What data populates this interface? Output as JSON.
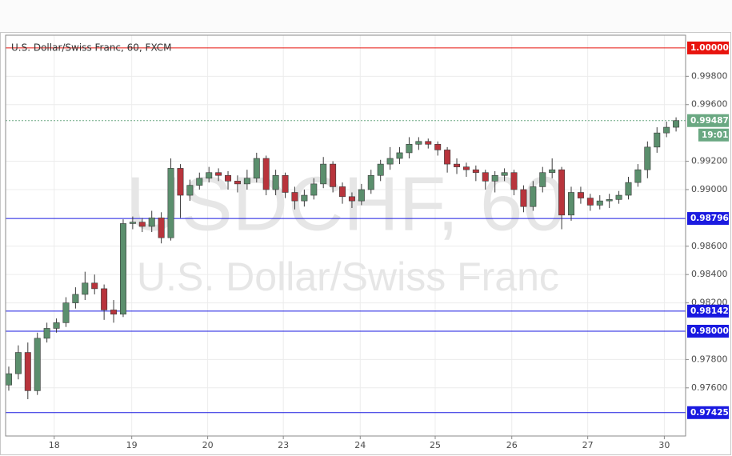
{
  "chart_data": {
    "type": "candlestick",
    "title": "U.S. Dollar/Swiss Franc, 60, FXCM",
    "watermark": "USDCHF, 60",
    "watermark_subtitle": "U.S. Dollar/Swiss Franc",
    "x": [
      1,
      4,
      7,
      10,
      13,
      16,
      19,
      22,
      25,
      28,
      31,
      34,
      37,
      40,
      43,
      46,
      49,
      52,
      55,
      58,
      61,
      64,
      67,
      70,
      73,
      76,
      79,
      82,
      85,
      88,
      91,
      94,
      97,
      100,
      103,
      106,
      109,
      112,
      115,
      118,
      121,
      124,
      127,
      130,
      133,
      136,
      139,
      142,
      145,
      148,
      151,
      154,
      157,
      160,
      163,
      166,
      169,
      172,
      175,
      178,
      181,
      184,
      187,
      190,
      193,
      196,
      199,
      202,
      205,
      208,
      211
    ],
    "open": [
      0.9762,
      0.977,
      0.9785,
      0.9758,
      0.9795,
      0.9802,
      0.9806,
      0.982,
      0.9826,
      0.9834,
      0.983,
      0.9815,
      0.9812,
      0.9876,
      0.9877,
      0.9874,
      0.988,
      0.9866,
      0.9915,
      0.9896,
      0.9903,
      0.9908,
      0.9912,
      0.991,
      0.9906,
      0.9904,
      0.9908,
      0.9922,
      0.99,
      0.991,
      0.9898,
      0.9892,
      0.9896,
      0.9904,
      0.9918,
      0.9902,
      0.9895,
      0.9892,
      0.99,
      0.991,
      0.9918,
      0.9922,
      0.9926,
      0.9932,
      0.9934,
      0.9932,
      0.9928,
      0.9918,
      0.9916,
      0.9914,
      0.9912,
      0.9906,
      0.991,
      0.9912,
      0.99,
      0.9888,
      0.9902,
      0.9912,
      0.9914,
      0.9882,
      0.9898,
      0.9894,
      0.9889,
      0.9892,
      0.9893,
      0.9896,
      0.9905,
      0.9914,
      0.993,
      0.994,
      0.9944
    ],
    "high": [
      0.9775,
      0.979,
      0.9792,
      0.9799,
      0.9806,
      0.9809,
      0.9824,
      0.9831,
      0.9842,
      0.984,
      0.9833,
      0.9822,
      0.9879,
      0.9881,
      0.988,
      0.9885,
      0.9884,
      0.9922,
      0.9918,
      0.9907,
      0.9912,
      0.9916,
      0.9915,
      0.9913,
      0.991,
      0.9914,
      0.9926,
      0.9924,
      0.9914,
      0.9912,
      0.9902,
      0.99,
      0.9908,
      0.9923,
      0.992,
      0.9905,
      0.9898,
      0.9904,
      0.9914,
      0.9921,
      0.993,
      0.993,
      0.9937,
      0.9937,
      0.9936,
      0.9934,
      0.993,
      0.9922,
      0.9919,
      0.9917,
      0.9914,
      0.9913,
      0.9915,
      0.9914,
      0.9903,
      0.9906,
      0.9916,
      0.9922,
      0.9916,
      0.9902,
      0.9902,
      0.9897,
      0.9896,
      0.9897,
      0.9899,
      0.9909,
      0.9918,
      0.9934,
      0.9944,
      0.9948,
      0.9951
    ],
    "low": [
      0.9758,
      0.9766,
      0.9752,
      0.9755,
      0.9792,
      0.9799,
      0.9803,
      0.9816,
      0.9822,
      0.9826,
      0.9808,
      0.9806,
      0.981,
      0.9872,
      0.987,
      0.987,
      0.9862,
      0.9864,
      0.988,
      0.9892,
      0.99,
      0.9905,
      0.9906,
      0.99,
      0.9898,
      0.99,
      0.9905,
      0.9896,
      0.9896,
      0.9894,
      0.9886,
      0.9888,
      0.9893,
      0.9901,
      0.9898,
      0.989,
      0.9887,
      0.9889,
      0.9897,
      0.9906,
      0.9914,
      0.9918,
      0.9922,
      0.9928,
      0.9929,
      0.9924,
      0.9912,
      0.9911,
      0.9909,
      0.9906,
      0.99,
      0.9898,
      0.9906,
      0.9896,
      0.9884,
      0.9885,
      0.9898,
      0.9908,
      0.9872,
      0.9878,
      0.989,
      0.9885,
      0.9886,
      0.9887,
      0.989,
      0.9893,
      0.9902,
      0.9908,
      0.9926,
      0.9937,
      0.9941
    ],
    "close": [
      0.977,
      0.9785,
      0.9758,
      0.9795,
      0.9802,
      0.9806,
      0.982,
      0.9826,
      0.9834,
      0.983,
      0.9815,
      0.9812,
      0.9876,
      0.9877,
      0.9874,
      0.988,
      0.9866,
      0.9915,
      0.9896,
      0.9903,
      0.9908,
      0.9912,
      0.991,
      0.9906,
      0.9904,
      0.9908,
      0.9922,
      0.99,
      0.991,
      0.9898,
      0.9892,
      0.9896,
      0.9904,
      0.9918,
      0.9902,
      0.9895,
      0.9892,
      0.99,
      0.991,
      0.9918,
      0.9922,
      0.9926,
      0.9932,
      0.9934,
      0.9932,
      0.9928,
      0.9918,
      0.9916,
      0.9914,
      0.9912,
      0.9906,
      0.991,
      0.9912,
      0.99,
      0.9888,
      0.9902,
      0.9912,
      0.9914,
      0.9882,
      0.9898,
      0.9894,
      0.9889,
      0.9892,
      0.9893,
      0.9896,
      0.9905,
      0.9914,
      0.993,
      0.994,
      0.9944,
      0.99487
    ],
    "up_color": "#5b8f6d",
    "down_color": "#b8343c",
    "xlim": [
      0,
      214
    ],
    "xticks": [
      {
        "value": 15.3,
        "label": "18"
      },
      {
        "value": 39.7,
        "label": "19"
      },
      {
        "value": 63.6,
        "label": "20"
      },
      {
        "value": 87.4,
        "label": "23"
      },
      {
        "value": 111.6,
        "label": "24"
      },
      {
        "value": 135.2,
        "label": "25"
      },
      {
        "value": 159.3,
        "label": "26"
      },
      {
        "value": 183.2,
        "label": "27"
      },
      {
        "value": 207.3,
        "label": "30"
      }
    ],
    "ylim": [
      0.9726,
      1.0009
    ],
    "yticks": [
      {
        "value": 0.976,
        "label": "0.97600"
      },
      {
        "value": 0.978,
        "label": "0.97800"
      },
      {
        "value": 0.982,
        "label": "0.98200"
      },
      {
        "value": 0.984,
        "label": "0.98400"
      },
      {
        "value": 0.986,
        "label": "0.98600"
      },
      {
        "value": 0.99,
        "label": "0.99000"
      },
      {
        "value": 0.992,
        "label": "0.99200"
      },
      {
        "value": 0.996,
        "label": "0.99600"
      },
      {
        "value": 0.998,
        "label": "0.99800"
      }
    ],
    "grid": true,
    "levels": [
      {
        "value": 1,
        "label": "1.00000",
        "color": "#e8140e",
        "style": "solid"
      },
      {
        "value": 0.99487,
        "label": "0.99487",
        "color": "#6aa882",
        "style": "dotted"
      },
      {
        "value": 0.98796,
        "label": "0.98796",
        "color": "#1a1ae0",
        "style": "solid"
      },
      {
        "value": 0.98142,
        "label": "0.98142",
        "color": "#1a1ae0",
        "style": "solid"
      },
      {
        "value": 0.98,
        "label": "0.98000",
        "color": "#1a1ae0",
        "style": "solid"
      },
      {
        "value": 0.97425,
        "label": "0.97425",
        "color": "#1a1ae0",
        "style": "solid"
      }
    ],
    "countdown": "19:01"
  }
}
